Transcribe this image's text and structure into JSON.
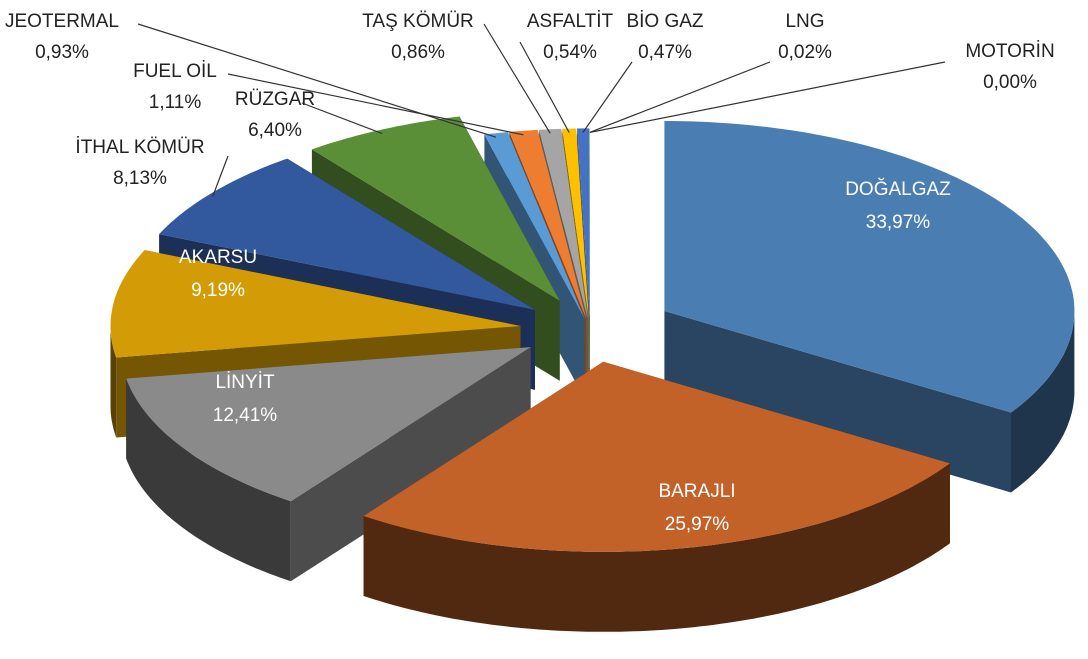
{
  "chart_data": {
    "type": "pie3d",
    "categories": [
      "DOĞALGAZ",
      "BARAJLI",
      "LİNYİT",
      "AKARSU",
      "İTHAL KÖMÜR",
      "RÜZGAR",
      "JEOTERMAL",
      "FUEL OİL",
      "TAŞ KÖMÜR",
      "ASFALTİT",
      "BİO GAZ",
      "LNG",
      "MOTORİN"
    ],
    "values": [
      33.97,
      25.97,
      12.41,
      9.19,
      8.13,
      6.4,
      0.93,
      1.11,
      0.86,
      0.54,
      0.47,
      0.02,
      0.0
    ],
    "value_labels": [
      "33,97%",
      "25,97%",
      "12,41%",
      "9,19%",
      "8,13%",
      "6,40%",
      "0,93%",
      "1,11%",
      "0,86%",
      "0,54%",
      "0,47%",
      "0,02%",
      "0,00%"
    ],
    "colors": [
      "#4a7eb3",
      "#c26228",
      "#8a8a8a",
      "#d39c06",
      "#32589e",
      "#5a8e37",
      "#5b9bd5",
      "#ed7d31",
      "#a5a5a5",
      "#ffc000",
      "#4472c4",
      "#70ad47",
      "#4f81bd"
    ]
  }
}
